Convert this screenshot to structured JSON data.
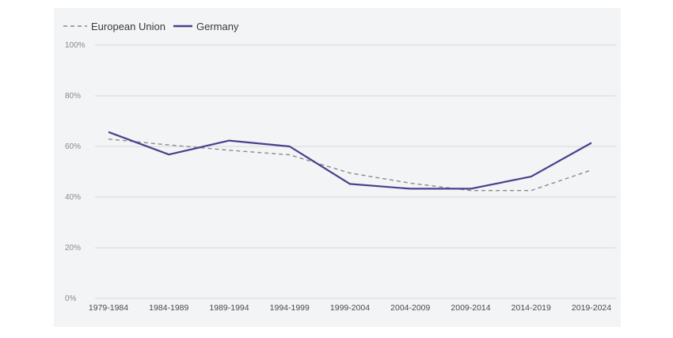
{
  "chart_data": {
    "type": "line",
    "categories": [
      "1979-1984",
      "1984-1989",
      "1989-1994",
      "1994-1999",
      "1999-2004",
      "2004-2009",
      "2009-2014",
      "2014-2019",
      "2019-2024"
    ],
    "series": [
      {
        "name": "European Union",
        "style": "dashed",
        "color": "#8a8a8a",
        "values": [
          62.9,
          60.6,
          58.5,
          56.7,
          49.5,
          45.5,
          42.6,
          42.6,
          50.7
        ]
      },
      {
        "name": "Germany",
        "style": "solid",
        "color": "#4b3f8c",
        "values": [
          65.7,
          56.8,
          62.3,
          60.0,
          45.2,
          43.3,
          43.3,
          48.1,
          61.4
        ]
      }
    ],
    "yticks": [
      "0%",
      "20%",
      "40%",
      "60%",
      "80%",
      "100%"
    ],
    "ylim": [
      0,
      100
    ],
    "grid": true,
    "legend_position": "top-left",
    "title": "",
    "xlabel": "",
    "ylabel": ""
  }
}
